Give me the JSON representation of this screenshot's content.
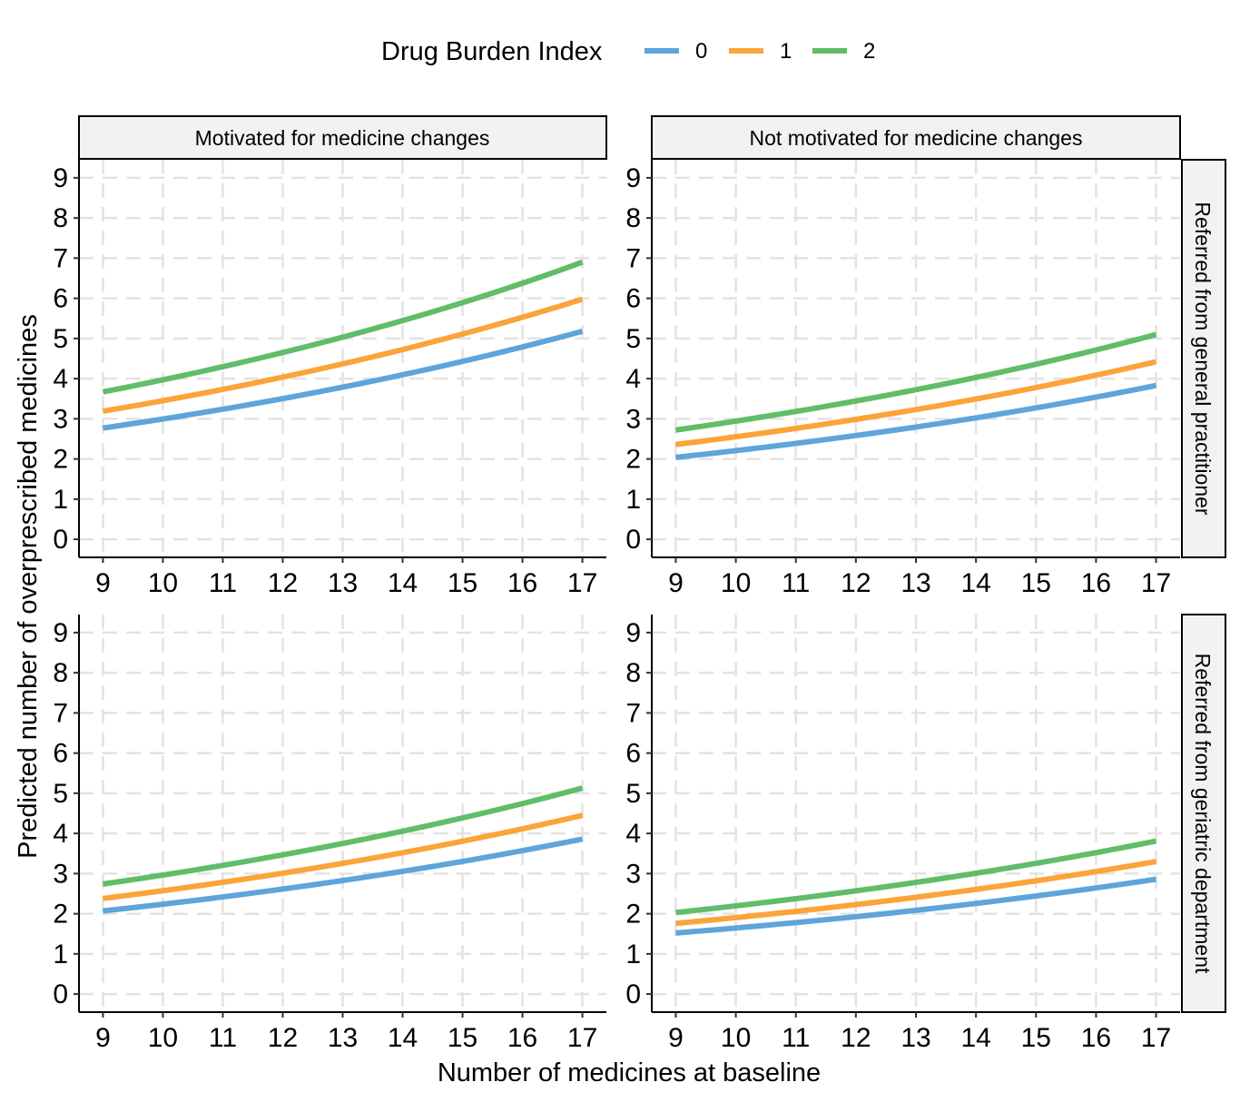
{
  "chart_data": {
    "type": "line",
    "layout": "facet-grid-2x2",
    "xlabel": "Number of medicines at baseline",
    "ylabel": "Predicted number of overprescribed medicines",
    "x_ticks": [
      9,
      10,
      11,
      12,
      13,
      14,
      15,
      16,
      17
    ],
    "y_ticks": [
      0,
      1,
      2,
      3,
      4,
      5,
      6,
      7,
      8,
      9
    ],
    "xlim": [
      8.6,
      17.4
    ],
    "ylim": [
      -0.45,
      9.45
    ],
    "grid": "dashed",
    "legend": {
      "title": "Drug Burden Index",
      "position": "top",
      "entries": [
        {
          "label": "0",
          "color": "#5DA5DA"
        },
        {
          "label": "1",
          "color": "#FAA43A"
        },
        {
          "label": "2",
          "color": "#60BD68"
        }
      ]
    },
    "col_labels": [
      "Motivated for medicine changes",
      "Not motivated for medicine changes"
    ],
    "row_labels": [
      "Referred from general practitioner",
      "Referred from geriatric department"
    ],
    "panels": [
      {
        "col": "Motivated for medicine changes",
        "row": "Referred from general practitioner",
        "x": [
          9,
          17
        ],
        "series": [
          {
            "name": "0",
            "values": [
              2.77,
              5.18
            ]
          },
          {
            "name": "1",
            "values": [
              3.19,
              5.98
            ]
          },
          {
            "name": "2",
            "values": [
              3.67,
              6.9
            ]
          }
        ]
      },
      {
        "col": "Not motivated for medicine changes",
        "row": "Referred from general practitioner",
        "x": [
          9,
          17
        ],
        "series": [
          {
            "name": "0",
            "values": [
              2.04,
              3.83
            ]
          },
          {
            "name": "1",
            "values": [
              2.36,
              4.42
            ]
          },
          {
            "name": "2",
            "values": [
              2.72,
              5.1
            ]
          }
        ]
      },
      {
        "col": "Motivated for medicine changes",
        "row": "Referred from geriatric department",
        "x": [
          9,
          17
        ],
        "series": [
          {
            "name": "0",
            "values": [
              2.07,
              3.86
            ]
          },
          {
            "name": "1",
            "values": [
              2.38,
              4.45
            ]
          },
          {
            "name": "2",
            "values": [
              2.74,
              5.13
            ]
          }
        ]
      },
      {
        "col": "Not motivated for medicine changes",
        "row": "Referred from geriatric department",
        "x": [
          9,
          17
        ],
        "series": [
          {
            "name": "0",
            "values": [
              1.52,
              2.86
            ]
          },
          {
            "name": "1",
            "values": [
              1.76,
              3.3
            ]
          },
          {
            "name": "2",
            "values": [
              2.03,
              3.81
            ]
          }
        ]
      }
    ]
  }
}
